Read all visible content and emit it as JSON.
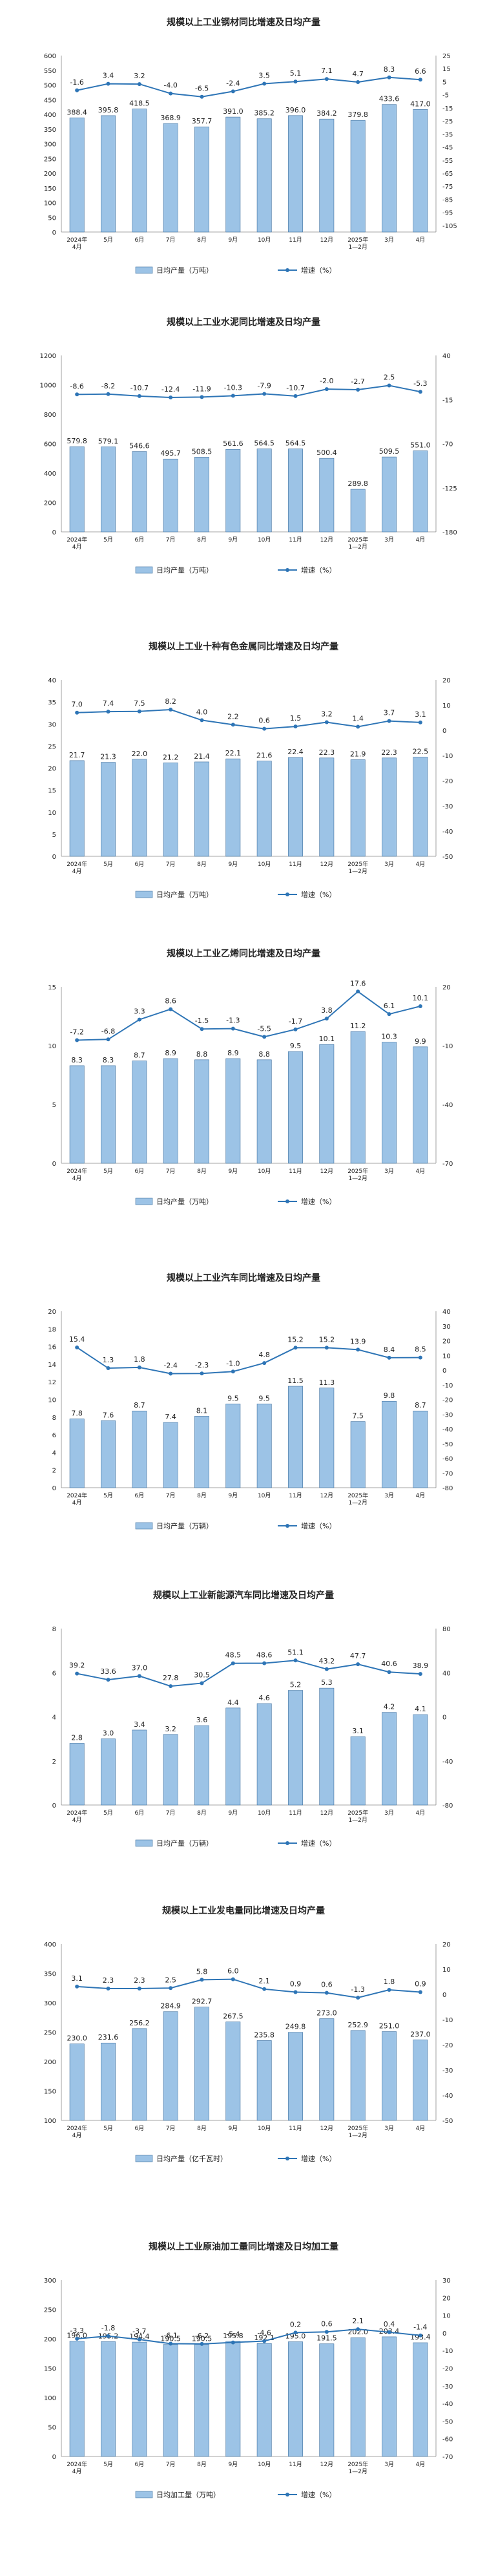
{
  "colors": {
    "bar_fill": "#9cc3e6",
    "bar_stroke": "#3c6e9e",
    "line": "#2e75b6",
    "text": "#222222"
  },
  "chart_data": [
    {
      "type": "bar+line",
      "title": "规模以上工业钢材同比增速及日均产量",
      "categories": [
        "2024年|4月",
        "5月",
        "6月",
        "7月",
        "8月",
        "9月",
        "10月",
        "11月",
        "12月",
        "2025年|1—2月",
        "3月",
        "4月"
      ],
      "bar_values": [
        388.4,
        395.8,
        418.5,
        368.9,
        357.7,
        391.0,
        385.2,
        396.0,
        384.2,
        379.8,
        433.6,
        417.0
      ],
      "line_values": [
        -1.6,
        3.4,
        3.2,
        -4.0,
        -6.5,
        -2.4,
        3.5,
        5.1,
        7.1,
        4.7,
        8.3,
        6.6
      ],
      "y_left": {
        "min": 0,
        "max": 600,
        "step": 50
      },
      "y_right": {
        "min": -110,
        "max": 25,
        "step": 10,
        "ticks": [
          25,
          15,
          5,
          -5,
          -15,
          -25,
          -35,
          -45,
          -55,
          -65,
          -75,
          -85,
          -95,
          -105
        ]
      },
      "legend": {
        "bar": "日均产量（万吨）",
        "line": "增速（%）"
      }
    },
    {
      "type": "bar+line",
      "title": "规模以上工业水泥同比增速及日均产量",
      "categories": [
        "2024年|4月",
        "5月",
        "6月",
        "7月",
        "8月",
        "9月",
        "10月",
        "11月",
        "12月",
        "2025年|1—2月",
        "3月",
        "4月"
      ],
      "bar_values": [
        579.8,
        579.1,
        546.6,
        495.7,
        508.5,
        561.6,
        564.5,
        564.5,
        500.4,
        289.8,
        509.5,
        551.0
      ],
      "line_values": [
        -8.6,
        -8.2,
        -10.7,
        -12.4,
        -11.9,
        -10.3,
        -7.9,
        -10.7,
        -2.0,
        -2.7,
        2.5,
        -5.3
      ],
      "y_left": {
        "min": 0,
        "max": 1200,
        "step": 200
      },
      "y_right": {
        "min": -180,
        "max": 40,
        "step": 55,
        "ticks": [
          40,
          -15,
          -70,
          -125,
          -180
        ]
      },
      "legend": {
        "bar": "日均产量（万吨）",
        "line": "增速（%）"
      }
    },
    {
      "type": "bar+line",
      "title": "规模以上工业十种有色金属同比增速及日均产量",
      "categories": [
        "2024年|4月",
        "5月",
        "6月",
        "7月",
        "8月",
        "9月",
        "10月",
        "11月",
        "12月",
        "2025年|1—2月",
        "3月",
        "4月"
      ],
      "bar_values": [
        21.7,
        21.3,
        22.0,
        21.2,
        21.4,
        22.1,
        21.6,
        22.4,
        22.3,
        21.9,
        22.3,
        22.5
      ],
      "line_values": [
        7.0,
        7.4,
        7.5,
        8.2,
        4.0,
        2.2,
        0.6,
        1.5,
        3.2,
        1.4,
        3.7,
        3.1
      ],
      "y_left": {
        "min": 0,
        "max": 40,
        "step": 5
      },
      "y_right": {
        "min": -50,
        "max": 20,
        "step": 10,
        "ticks": [
          20,
          10,
          0,
          -10,
          -20,
          -30,
          -40,
          -50
        ]
      },
      "legend": {
        "bar": "日均产量（万吨）",
        "line": "增速（%）"
      }
    },
    {
      "type": "bar+line",
      "title": "规模以上工业乙烯同比增速及日均产量",
      "categories": [
        "2024年|4月",
        "5月",
        "6月",
        "7月",
        "8月",
        "9月",
        "10月",
        "11月",
        "12月",
        "2025年|1—2月",
        "3月",
        "4月"
      ],
      "bar_values": [
        8.3,
        8.3,
        8.7,
        8.9,
        8.8,
        8.9,
        8.8,
        9.5,
        10.1,
        11.2,
        10.3,
        9.9
      ],
      "line_values": [
        -7.2,
        -6.8,
        3.3,
        8.6,
        -1.5,
        -1.3,
        -5.5,
        -1.7,
        3.8,
        17.6,
        6.1,
        10.1
      ],
      "y_left": {
        "min": 0,
        "max": 15,
        "step": 5
      },
      "y_right": {
        "min": -70,
        "max": 20,
        "step": 30,
        "ticks": [
          20,
          -10,
          -40,
          -70
        ]
      },
      "legend": {
        "bar": "日均产量（万吨）",
        "line": "增速（%）"
      }
    },
    {
      "type": "bar+line",
      "title": "规模以上工业汽车同比增速及日均产量",
      "categories": [
        "2024年|4月",
        "5月",
        "6月",
        "7月",
        "8月",
        "9月",
        "10月",
        "11月",
        "12月",
        "2025年|1—2月",
        "3月",
        "4月"
      ],
      "bar_values": [
        7.8,
        7.6,
        8.7,
        7.4,
        8.1,
        9.5,
        9.5,
        11.5,
        11.3,
        7.5,
        9.8,
        8.7
      ],
      "line_values": [
        15.4,
        1.3,
        1.8,
        -2.4,
        -2.3,
        -1.0,
        4.8,
        15.2,
        15.2,
        13.9,
        8.4,
        8.5
      ],
      "y_left": {
        "min": 0,
        "max": 20,
        "step": 2
      },
      "y_right": {
        "min": -80,
        "max": 40,
        "step": 10,
        "ticks": [
          40,
          30,
          20,
          10,
          0,
          -10,
          -20,
          -30,
          -40,
          -50,
          -60,
          -70,
          -80
        ]
      },
      "legend": {
        "bar": "日均产量（万辆）",
        "line": "增速（%）"
      }
    },
    {
      "type": "bar+line",
      "title": "规模以上工业新能源汽车同比增速及日均产量",
      "categories": [
        "2024年|4月",
        "5月",
        "6月",
        "7月",
        "8月",
        "9月",
        "10月",
        "11月",
        "12月",
        "2025年|1—2月",
        "3月",
        "4月"
      ],
      "bar_values": [
        2.8,
        3.0,
        3.4,
        3.2,
        3.6,
        4.4,
        4.6,
        5.2,
        5.3,
        3.1,
        4.2,
        4.1
      ],
      "line_values": [
        39.2,
        33.6,
        37.0,
        27.8,
        30.5,
        48.5,
        48.6,
        51.1,
        43.2,
        47.7,
        40.6,
        38.9
      ],
      "y_left": {
        "min": 0,
        "max": 8,
        "step": 2
      },
      "y_right": {
        "min": -80,
        "max": 80,
        "step": 40,
        "ticks": [
          80,
          40,
          0,
          -40,
          -80
        ]
      },
      "legend": {
        "bar": "日均产量（万辆）",
        "line": "增速（%）"
      }
    },
    {
      "type": "bar+line",
      "title": "规模以上工业发电量同比增速及日均产量",
      "categories": [
        "2024年|4月",
        "5月",
        "6月",
        "7月",
        "8月",
        "9月",
        "10月",
        "11月",
        "12月",
        "2025年|1—2月",
        "3月",
        "4月"
      ],
      "bar_values": [
        230.0,
        231.6,
        256.2,
        284.9,
        292.7,
        267.5,
        235.8,
        249.8,
        273.0,
        252.9,
        251.0,
        237.0
      ],
      "line_values": [
        3.1,
        2.3,
        2.3,
        2.5,
        5.8,
        6.0,
        2.1,
        0.9,
        0.6,
        -1.3,
        1.8,
        0.9
      ],
      "y_left": {
        "min": 100,
        "max": 400,
        "step": 50
      },
      "y_right": {
        "min": -50,
        "max": 20,
        "step": 10,
        "ticks": [
          20,
          10,
          0,
          -10,
          -20,
          -30,
          -40,
          -50
        ]
      },
      "legend": {
        "bar": "日均产量（亿千瓦时）",
        "line": "增速（%）"
      }
    },
    {
      "type": "bar+line",
      "title": "规模以上工业原油加工量同比增速及日均加工量",
      "categories": [
        "2024年|4月",
        "5月",
        "6月",
        "7月",
        "8月",
        "9月",
        "10月",
        "11月",
        "12月",
        "2025年|1—2月",
        "3月",
        "4月"
      ],
      "bar_values": [
        196.0,
        195.2,
        194.4,
        190.5,
        190.5,
        195.8,
        192.1,
        195.0,
        191.5,
        202.0,
        203.4,
        193.4
      ],
      "line_values": [
        -3.3,
        -1.8,
        -3.7,
        -6.1,
        -6.2,
        -5.4,
        -4.6,
        0.2,
        0.6,
        2.1,
        0.4,
        -1.4
      ],
      "y_left": {
        "min": 0,
        "max": 300,
        "step": 50
      },
      "y_right": {
        "min": -70,
        "max": 30,
        "step": 10,
        "ticks": [
          30,
          20,
          10,
          0,
          -10,
          -20,
          -30,
          -40,
          -50,
          -60,
          -70
        ]
      },
      "legend": {
        "bar": "日均加工量（万吨）",
        "line": "增速（%）"
      }
    }
  ]
}
